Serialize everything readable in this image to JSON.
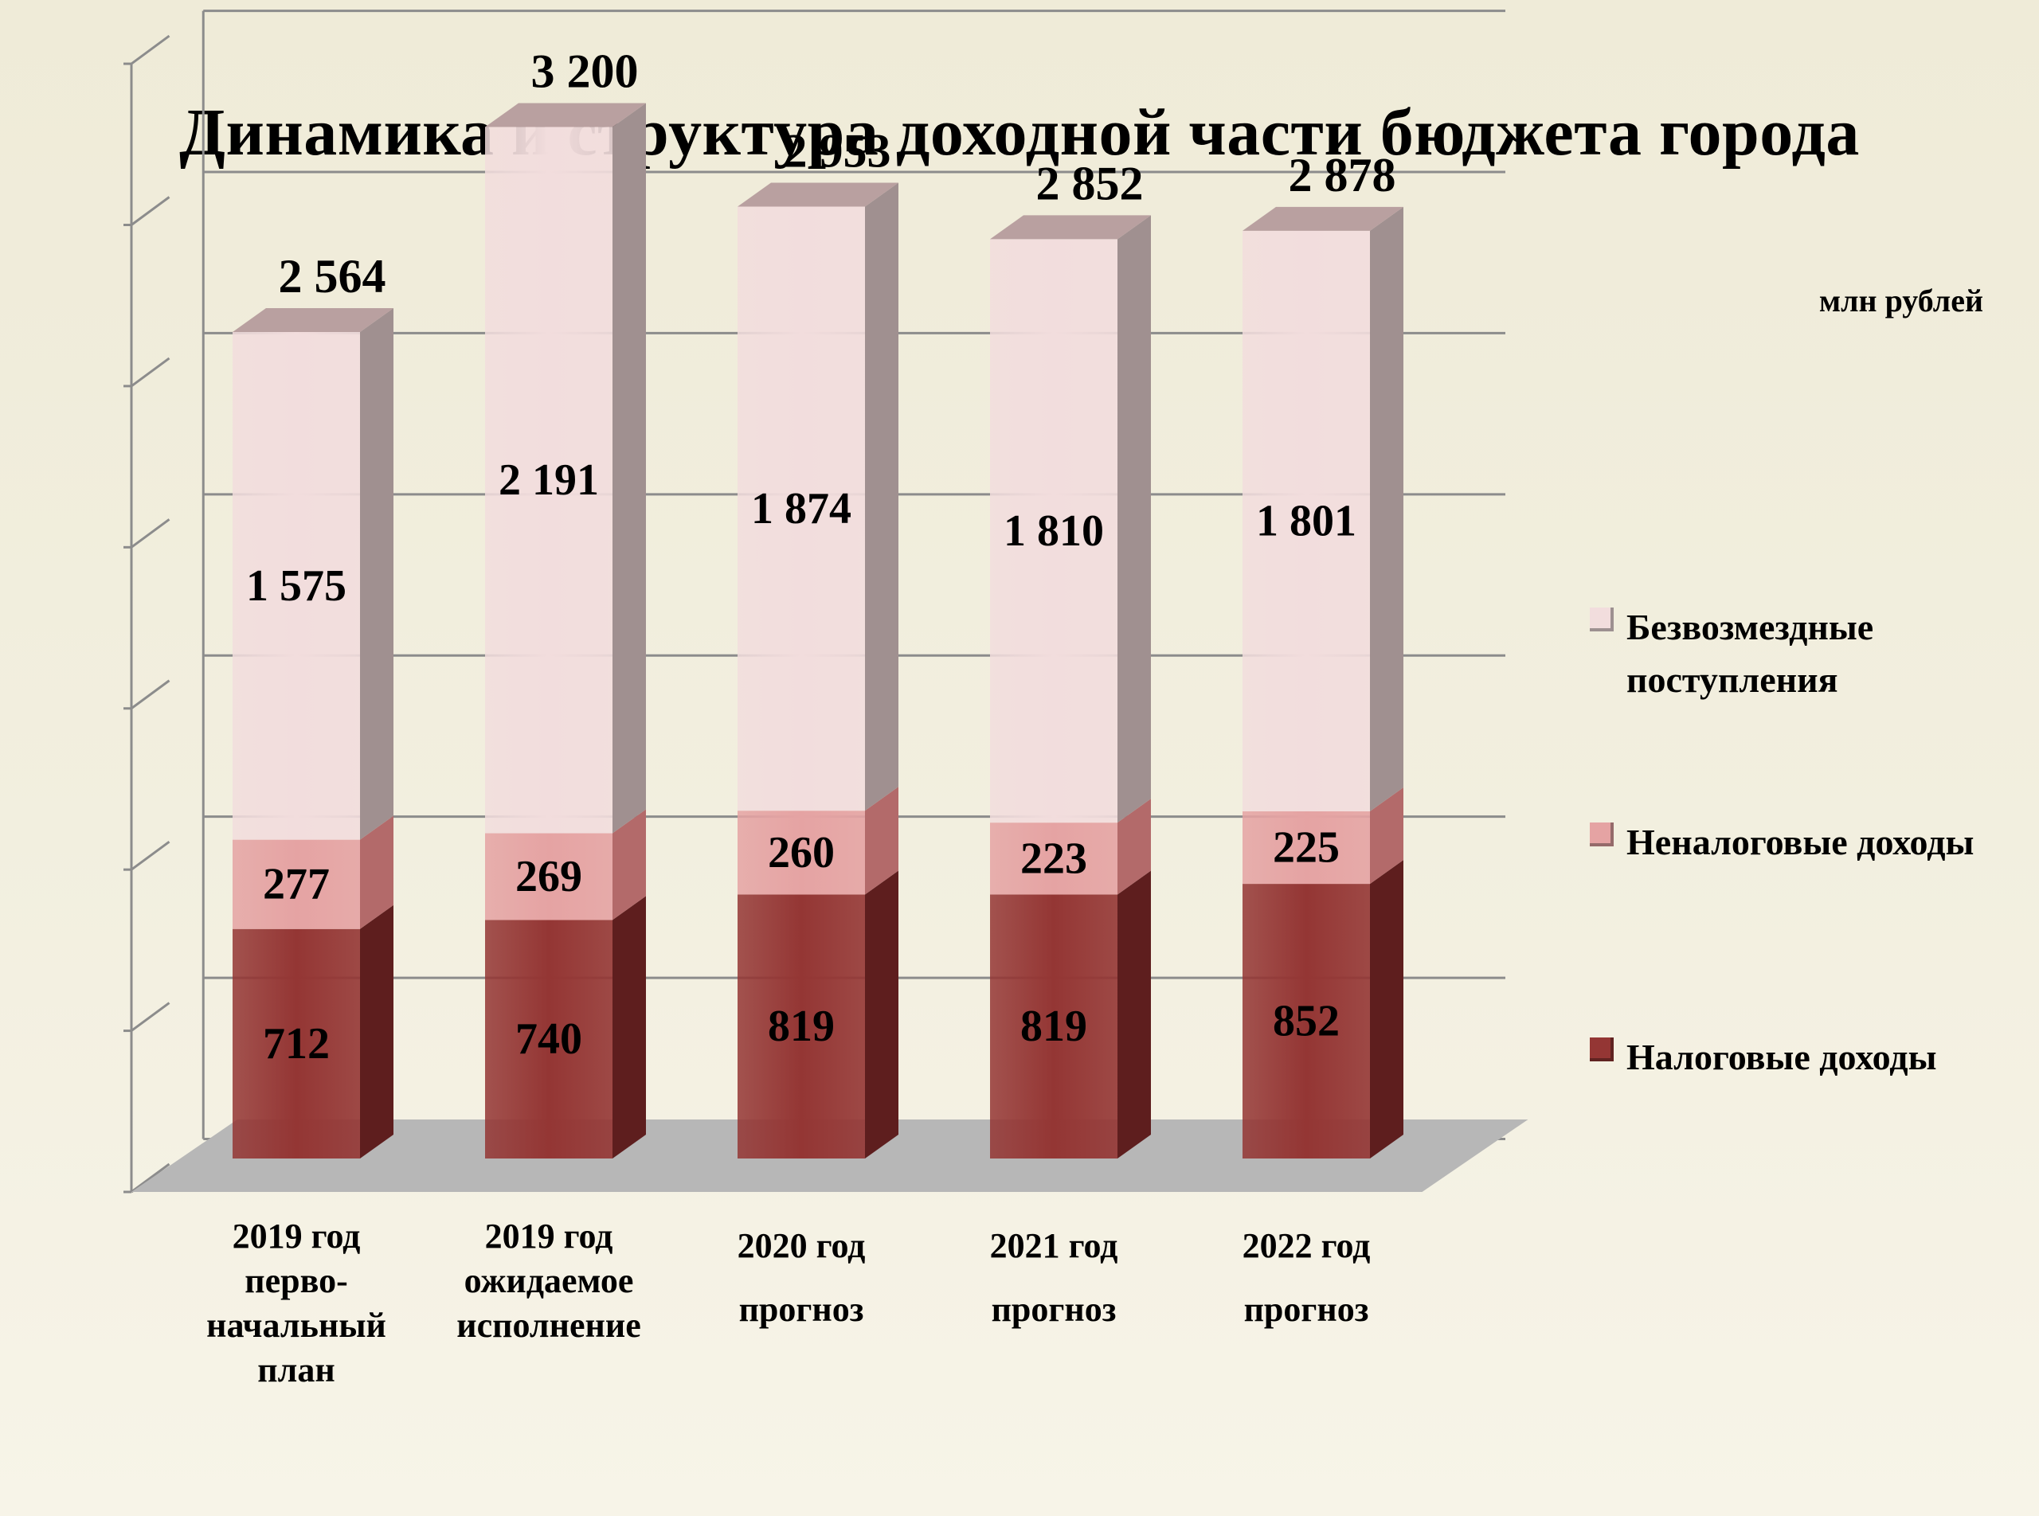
{
  "chart_data": {
    "type": "bar",
    "stacked": true,
    "three_d": true,
    "title": "Динамика и структура доходной части бюджета города",
    "unit": "млн рублей",
    "categories": [
      "2019 год\nперво-\nначальный\nплан",
      "2019 год\nожидаемое\nисполнение",
      "2020 год\nпрогноз",
      "2021 год\nпрогноз",
      "2022 год\nпрогноз"
    ],
    "series": [
      {
        "name": "Налоговые доходы",
        "values": [
          712,
          740,
          819,
          819,
          852
        ],
        "labels": [
          "712",
          "740",
          "819",
          "819",
          "852"
        ]
      },
      {
        "name": "Неналоговые доходы",
        "values": [
          277,
          269,
          260,
          223,
          225
        ],
        "labels": [
          "277",
          "269",
          "260",
          "223",
          "225"
        ]
      },
      {
        "name": "Безвозмездные поступления",
        "values": [
          1575,
          2191,
          1874,
          1810,
          1801
        ],
        "labels": [
          "1 575",
          "2 191",
          "1 874",
          "1 810",
          "1 801"
        ]
      }
    ],
    "totals": [
      2564,
      3200,
      2953,
      2852,
      2878
    ],
    "total_labels": [
      "2 564",
      "3 200",
      "2 953",
      "2 852",
      "2 878"
    ],
    "ylim": [
      0,
      3500
    ],
    "grid": true,
    "legend_position": "right",
    "legend_order": [
      2,
      1,
      0
    ],
    "colors": {
      "series_front": [
        "#943634",
        "#e5a3a3",
        "#f2dddd"
      ],
      "series_side": [
        "#5e1e1e",
        "#b36a6a",
        "#a09090"
      ],
      "series_top": [
        "#b85b5b",
        "#f0c5c5",
        "#b9a0a0"
      ],
      "floor": "#b7b7b7",
      "grid": "#8c8c8c"
    }
  }
}
